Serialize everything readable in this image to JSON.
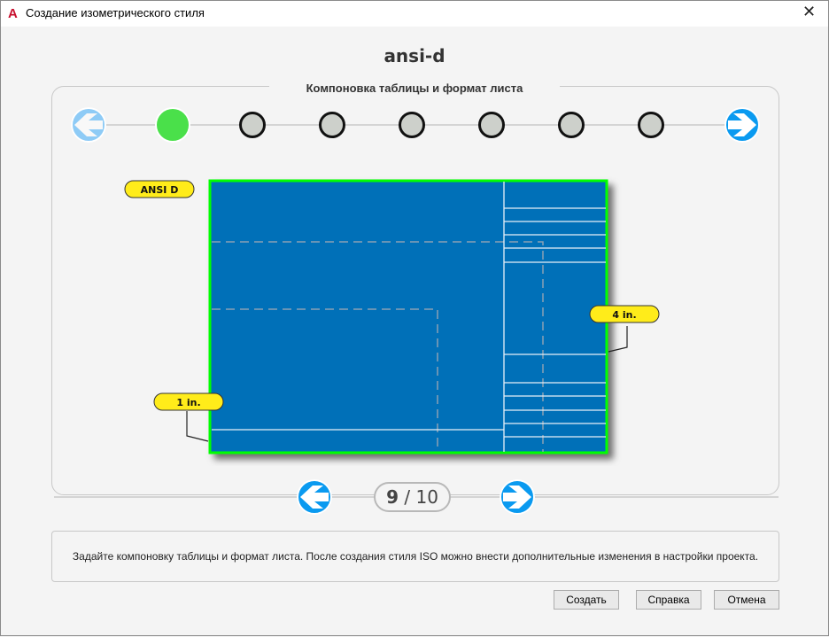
{
  "window": {
    "title": "Создание изометрического стиля",
    "app_icon": "A",
    "close": "✕"
  },
  "style_name": "ansi-d",
  "section_title": "Компоновка таблицы и формат листа",
  "steps": {
    "total": 8,
    "current": 1,
    "active_color": "#4ae04a",
    "inactive_color": "#cdd0cb"
  },
  "drawing": {
    "sheet_label": "ANSI D",
    "right_dim": "4 in.",
    "bottom_dim": "1 in.",
    "sheet_color": "#0070b8",
    "border_color": "#00ff00"
  },
  "pager": {
    "current": "9",
    "separator": "/",
    "total": "10"
  },
  "description": "Задайте компоновку таблицы и формат листа. После создания стиля ISO можно внести дополнительные изменения в настройки проекта.",
  "buttons": {
    "create": "Создать",
    "help": "Справка",
    "cancel": "Отмена"
  }
}
